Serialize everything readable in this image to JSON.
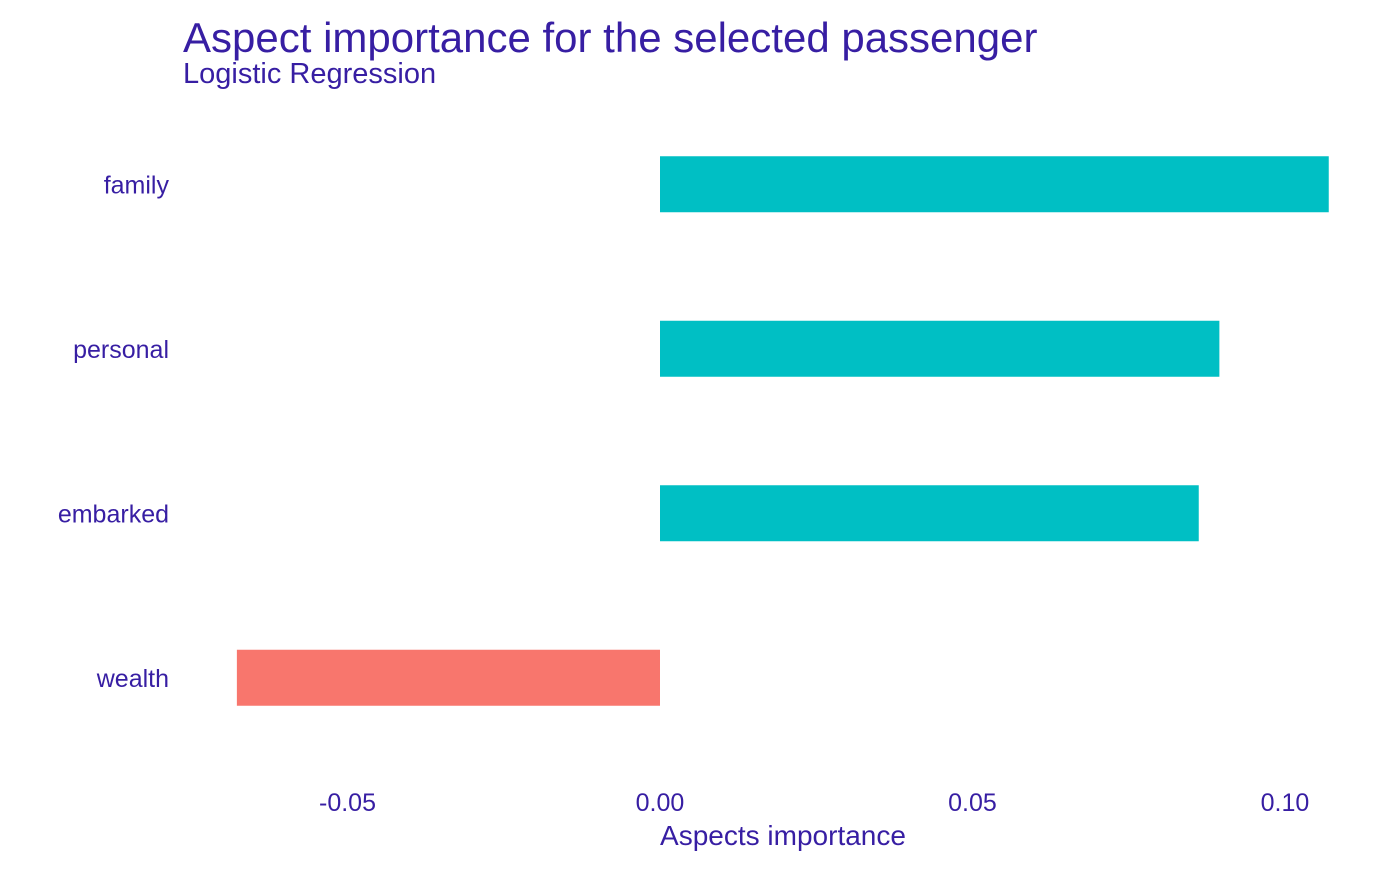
{
  "colors": {
    "text": "#371ea3",
    "positive": "#00bfc4",
    "negative": "#f8766d",
    "background": "#ffffff"
  },
  "chart_data": {
    "type": "bar",
    "orientation": "horizontal",
    "title": "Aspect importance for the selected passenger",
    "subtitle": "Logistic Regression",
    "xlabel": "Aspects importance",
    "ylabel": "",
    "categories": [
      "family",
      "personal",
      "embarked",
      "wealth"
    ],
    "values": [
      0.107,
      0.0895,
      0.0862,
      -0.0677
    ],
    "xlim": [
      -0.075,
      0.11
    ],
    "xticks": [
      -0.05,
      0.0,
      0.05,
      0.1
    ],
    "xtick_labels": [
      "-0.05",
      "0.00",
      "0.05",
      "0.10"
    ],
    "grid": false,
    "legend": "none"
  }
}
